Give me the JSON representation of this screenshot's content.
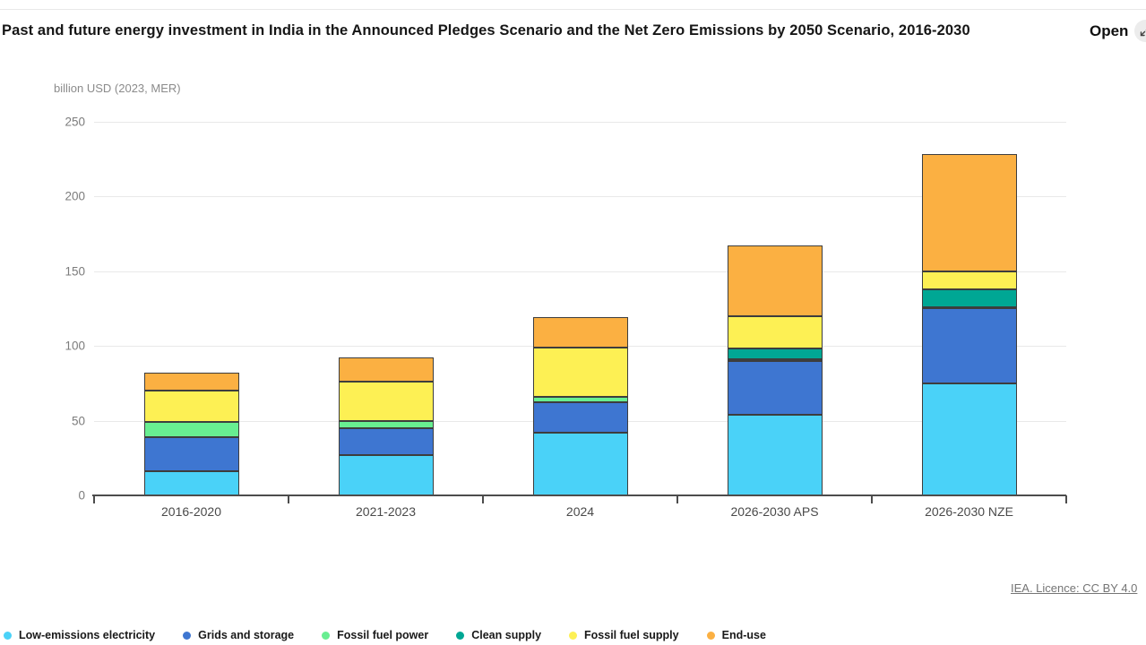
{
  "header": {
    "title": "Past and future energy investment in India in the Announced Pledges Scenario and the Net Zero Emissions by 2050 Scenario, 2016-2030",
    "open_label": "Open"
  },
  "footer": {
    "licence": "IEA. Licence: CC BY 4.0"
  },
  "chart_data": {
    "type": "bar",
    "stacked": true,
    "title": "Past and future energy investment in India in the Announced Pledges Scenario and the Net Zero Emissions by 2050 Scenario, 2016-2030",
    "unit_label": "billion USD (2023, MER)",
    "categories": [
      "2016-2020",
      "2021-2023",
      "2024",
      "2026-2030 APS",
      "2026-2030 NZE"
    ],
    "series": [
      {
        "name": "Low-emissions electricity",
        "color": "#4AD2F8",
        "values": [
          16,
          27,
          42,
          54,
          75
        ]
      },
      {
        "name": "Grids and storage",
        "color": "#3E76D1",
        "values": [
          23,
          18,
          20,
          36,
          50
        ]
      },
      {
        "name": "Fossil fuel power",
        "color": "#68EE91",
        "values": [
          10,
          5,
          4,
          1,
          1
        ]
      },
      {
        "name": "Clean supply",
        "color": "#00A794",
        "values": [
          0,
          0,
          0,
          7,
          12
        ]
      },
      {
        "name": "Fossil fuel supply",
        "color": "#FDF054",
        "values": [
          21,
          26,
          33,
          22,
          12
        ]
      },
      {
        "name": "End-use",
        "color": "#FBB042",
        "values": [
          12,
          16,
          20,
          47,
          78
        ]
      }
    ],
    "totals": [
      82,
      92,
      119,
      167,
      228
    ],
    "ylim": [
      0,
      250
    ],
    "yticks": [
      0,
      50,
      100,
      150,
      200,
      250
    ],
    "grid": true,
    "legend_position": "bottom"
  }
}
